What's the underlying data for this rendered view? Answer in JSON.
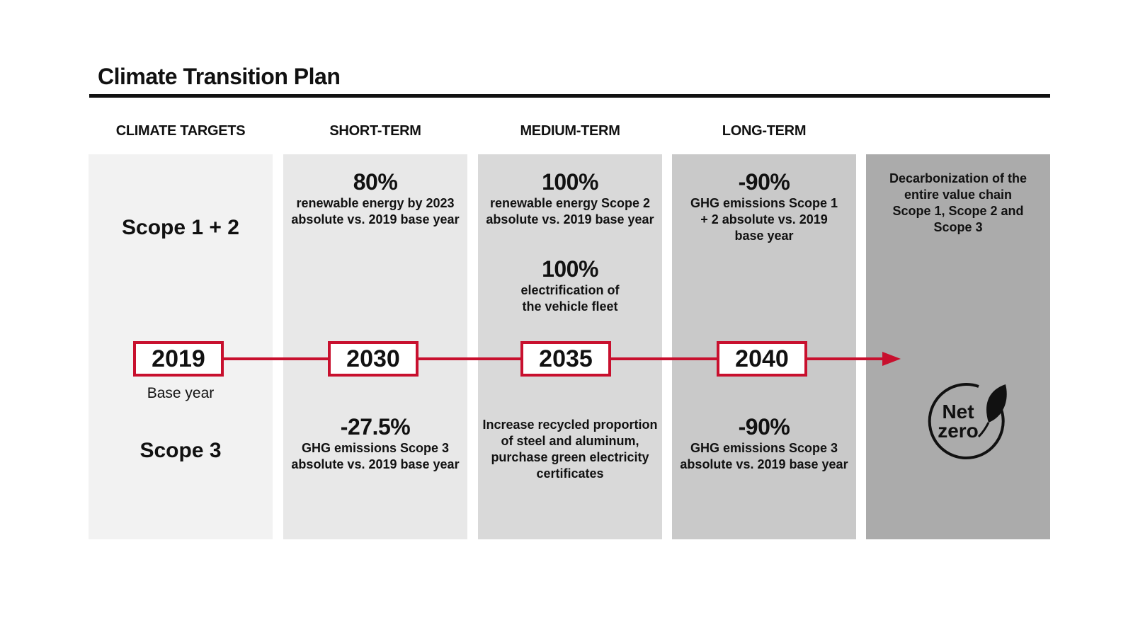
{
  "title": "Climate Transition Plan",
  "colors": {
    "accent": "#c8102e",
    "panel_targets": "#f2f2f2",
    "panel_short": "#e8e8e8",
    "panel_medium": "#d9d9d9",
    "panel_long": "#c9c9c9",
    "panel_netzero": "#ababab"
  },
  "headers": {
    "targets": "CLIMATE TARGETS",
    "short": "SHORT-TERM",
    "medium": "MEDIUM-TERM",
    "long": "LONG-TERM"
  },
  "scopes": {
    "scope12": "Scope 1 + 2",
    "scope3": "Scope 3"
  },
  "milestones": {
    "y2019": "2019",
    "y2030": "2030",
    "y2035": "2035",
    "y2040": "2040",
    "base_label": "Base year"
  },
  "targets": {
    "short_s12": {
      "pct": "80%",
      "desc": "renewable energy by 2023 absolute vs. 2019 base year"
    },
    "medium_s12_a": {
      "pct": "100%",
      "desc": "renewable energy Scope 2 absolute vs. 2019 base year"
    },
    "medium_s12_b": {
      "pct": "100%",
      "desc": "electrification of the vehicle fleet"
    },
    "long_s12": {
      "pct": "-90%",
      "desc": "GHG emissions Scope 1 + 2 absolute vs. 2019 base year"
    },
    "short_s3": {
      "pct": "-27.5%",
      "desc": "GHG emissions Scope 3 absolute vs. 2019 base year"
    },
    "medium_s3": {
      "desc": "Increase recycled proportion of steel and aluminum, purchase green electricity certificates"
    },
    "long_s3": {
      "pct": "-90%",
      "desc": "GHG emissions Scope 3 absolute vs. 2019 base year"
    }
  },
  "netzero": {
    "desc": "Decarbonization of the entire value chain Scope 1, Scope 2 and Scope 3",
    "badge_line1": "Net",
    "badge_line2": "zero",
    "icon": "leaf-icon"
  }
}
